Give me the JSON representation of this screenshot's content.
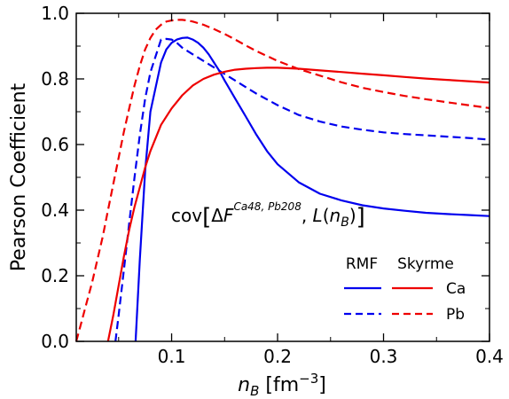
{
  "chart_data": {
    "type": "line",
    "xlabel": "n_B [fm^-3]",
    "ylabel": "Pearson Coefficient",
    "xlim": [
      0.01,
      0.4
    ],
    "ylim": [
      0.0,
      1.0
    ],
    "xticks": [
      0.1,
      0.2,
      0.3,
      0.4
    ],
    "xtick_labels": [
      "0.1",
      "0.2",
      "0.3",
      "0.4"
    ],
    "yticks": [
      0.0,
      0.2,
      0.4,
      0.6,
      0.8,
      1.0
    ],
    "ytick_labels": [
      "0.0",
      "0.2",
      "0.4",
      "0.6",
      "0.8",
      "1.0"
    ],
    "annotation": "cov[ΔF^{Ca48,Pb208}, L(n_B)]",
    "grid": false,
    "legend": {
      "placement": "bottom-right",
      "column_headers": [
        "RMF",
        "Skyrme"
      ],
      "row_labels": [
        "Ca",
        "Pb"
      ]
    },
    "colors": {
      "RMF": "#0000ee",
      "Skyrme": "#ee0000"
    },
    "series": [
      {
        "model": "RMF",
        "nucleus": "Ca",
        "color": "#0000ee",
        "dash": "solid",
        "x": [
          0.066,
          0.07,
          0.075,
          0.08,
          0.086,
          0.09,
          0.095,
          0.1,
          0.105,
          0.11,
          0.115,
          0.12,
          0.125,
          0.13,
          0.135,
          0.14,
          0.145,
          0.15,
          0.16,
          0.17,
          0.18,
          0.19,
          0.2,
          0.22,
          0.24,
          0.26,
          0.28,
          0.3,
          0.32,
          0.34,
          0.36,
          0.38,
          0.4
        ],
        "y": [
          0.0,
          0.25,
          0.52,
          0.7,
          0.79,
          0.85,
          0.89,
          0.91,
          0.92,
          0.925,
          0.926,
          0.92,
          0.91,
          0.895,
          0.875,
          0.85,
          0.825,
          0.795,
          0.74,
          0.685,
          0.63,
          0.58,
          0.54,
          0.485,
          0.45,
          0.43,
          0.415,
          0.405,
          0.398,
          0.392,
          0.388,
          0.385,
          0.382
        ]
      },
      {
        "model": "RMF",
        "nucleus": "Pb",
        "color": "#0000ee",
        "dash": "dashed",
        "x": [
          0.047,
          0.05,
          0.055,
          0.06,
          0.065,
          0.07,
          0.075,
          0.08,
          0.085,
          0.09,
          0.095,
          0.1,
          0.105,
          0.11,
          0.12,
          0.13,
          0.14,
          0.15,
          0.16,
          0.17,
          0.18,
          0.2,
          0.22,
          0.24,
          0.26,
          0.28,
          0.3,
          0.32,
          0.34,
          0.36,
          0.38,
          0.4
        ],
        "y": [
          0.0,
          0.08,
          0.22,
          0.36,
          0.5,
          0.63,
          0.74,
          0.82,
          0.87,
          0.92,
          0.922,
          0.92,
          0.91,
          0.895,
          0.875,
          0.855,
          0.835,
          0.815,
          0.795,
          0.775,
          0.755,
          0.72,
          0.69,
          0.67,
          0.655,
          0.645,
          0.637,
          0.632,
          0.628,
          0.624,
          0.62,
          0.615
        ]
      },
      {
        "model": "Skyrme",
        "nucleus": "Ca",
        "color": "#ee0000",
        "dash": "solid",
        "x": [
          0.04,
          0.045,
          0.05,
          0.055,
          0.06,
          0.065,
          0.07,
          0.075,
          0.08,
          0.09,
          0.1,
          0.11,
          0.12,
          0.13,
          0.14,
          0.15,
          0.16,
          0.17,
          0.18,
          0.19,
          0.2,
          0.22,
          0.24,
          0.26,
          0.28,
          0.3,
          0.32,
          0.34,
          0.36,
          0.38,
          0.4
        ],
        "y": [
          0.0,
          0.08,
          0.17,
          0.26,
          0.34,
          0.41,
          0.47,
          0.53,
          0.58,
          0.66,
          0.71,
          0.75,
          0.78,
          0.8,
          0.813,
          0.822,
          0.828,
          0.831,
          0.833,
          0.834,
          0.834,
          0.831,
          0.826,
          0.821,
          0.816,
          0.811,
          0.806,
          0.801,
          0.797,
          0.793,
          0.789
        ]
      },
      {
        "model": "Skyrme",
        "nucleus": "Pb",
        "color": "#ee0000",
        "dash": "dashed",
        "x": [
          0.01,
          0.015,
          0.02,
          0.025,
          0.03,
          0.035,
          0.04,
          0.045,
          0.05,
          0.055,
          0.06,
          0.065,
          0.07,
          0.075,
          0.08,
          0.085,
          0.09,
          0.095,
          0.1,
          0.105,
          0.11,
          0.115,
          0.12,
          0.13,
          0.14,
          0.15,
          0.16,
          0.17,
          0.18,
          0.2,
          0.22,
          0.24,
          0.26,
          0.28,
          0.3,
          0.32,
          0.34,
          0.36,
          0.38,
          0.4
        ],
        "y": [
          0.0,
          0.06,
          0.12,
          0.18,
          0.25,
          0.32,
          0.4,
          0.48,
          0.56,
          0.64,
          0.71,
          0.78,
          0.84,
          0.89,
          0.925,
          0.95,
          0.965,
          0.975,
          0.978,
          0.98,
          0.98,
          0.978,
          0.975,
          0.965,
          0.952,
          0.937,
          0.92,
          0.902,
          0.885,
          0.855,
          0.83,
          0.81,
          0.79,
          0.773,
          0.76,
          0.748,
          0.738,
          0.729,
          0.72,
          0.711
        ]
      }
    ]
  }
}
